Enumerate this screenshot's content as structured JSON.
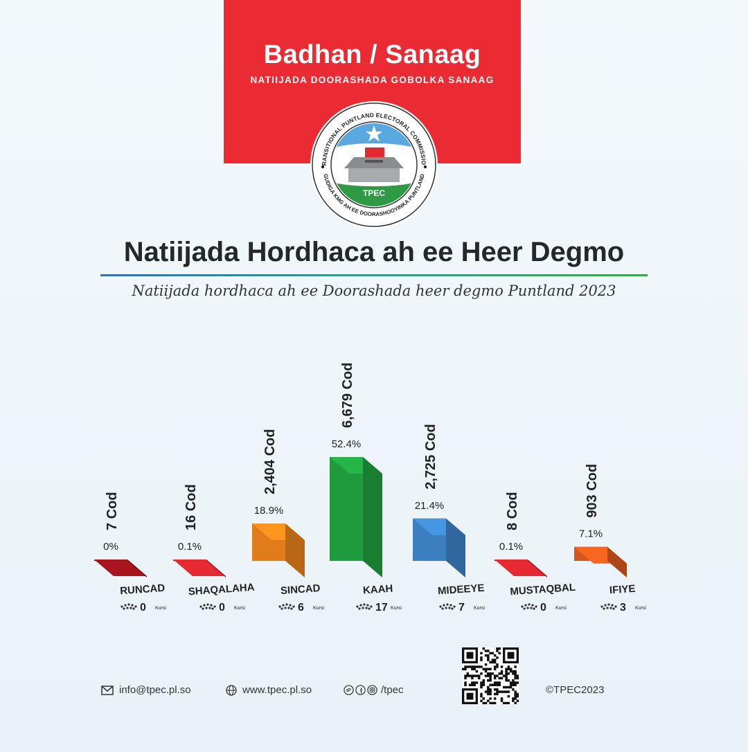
{
  "banner": {
    "region": "Badhan / Sanaag",
    "subregion": "NATIIJADA DOORASHADA GOBOLKA SANAAG"
  },
  "logo": {
    "text_top": "TRANSITIONAL PUNTLAND ELECTORAL COMMISSION",
    "text_bottom": "GUDIGA KMG AH EE DOORASHOOYINKA PUNTLAND",
    "abbr": "TPEC"
  },
  "header": {
    "title": "Natiijada Hordhaca ah ee Heer Degmo",
    "subtitle": "Natiijada hordhaca ah ee Doorashada heer degmo Puntland 2023"
  },
  "chart_data": {
    "type": "bar",
    "categories": [
      "RUNCAD",
      "SHAQALAHA",
      "SINCAD",
      "KAAH",
      "MIDEEYE",
      "MUSTAQBAL",
      "IFIYE"
    ],
    "series": [
      {
        "values": [
          7,
          16,
          2404,
          6679,
          2725,
          8,
          903
        ]
      }
    ],
    "vote_labels": [
      "7 Cod",
      "16 Cod",
      "2,404 Cod",
      "6,679 Cod",
      "2,725 Cod",
      "8 Cod",
      "903 Cod"
    ],
    "percent_labels": [
      "0%",
      "0.1%",
      "18.9%",
      "52.4%",
      "21.4%",
      "0.1%",
      "7.1%"
    ],
    "percents": [
      0,
      0.1,
      18.9,
      52.4,
      21.4,
      0.1,
      7.1
    ],
    "seats": [
      "0",
      "0",
      "6",
      "17",
      "7",
      "0",
      "3"
    ],
    "seat_unit": "Kursi",
    "colors": [
      "#8e1219",
      "#c3232a",
      "#e07d1a",
      "#1f9a3c",
      "#3b7fc0",
      "#c3232a",
      "#d2571c"
    ]
  },
  "footer": {
    "email": "info@tpec.pl.so",
    "website": "www.tpec.pl.so",
    "social": "/tpec",
    "copyright": "©TPEC2023",
    "email_icon": "envelope-icon",
    "web_icon": "globe-icon",
    "social_icons": [
      "twitter-icon",
      "facebook-icon",
      "instagram-icon"
    ]
  }
}
